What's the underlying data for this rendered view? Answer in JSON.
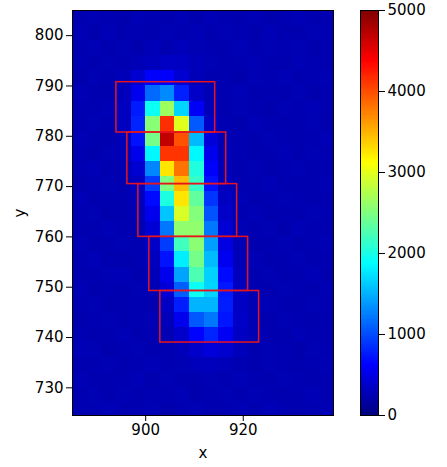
{
  "chart_data": {
    "type": "heatmap",
    "x_label": "x",
    "y_label": "y",
    "xlim": [
      885,
      938.5
    ],
    "ylim": [
      724.5,
      805
    ],
    "xticks": [
      900,
      920
    ],
    "yticks": [
      730,
      740,
      750,
      760,
      770,
      780,
      790,
      800
    ],
    "cells": {
      "x_edges": [
        885,
        888,
        891,
        894,
        897,
        900,
        903,
        906,
        909,
        912,
        915,
        918,
        921,
        924,
        927,
        930,
        933,
        936,
        939
      ],
      "y_edges": [
        805,
        802,
        799,
        796,
        793,
        790,
        787,
        784,
        781,
        778,
        775,
        772,
        769,
        766,
        763,
        760,
        757,
        754,
        751,
        748,
        745,
        742,
        739,
        736,
        733,
        730,
        727,
        724
      ],
      "values": [
        [
          240,
          265,
          250,
          230,
          270,
          255,
          245,
          260,
          235,
          275,
          250,
          240,
          265,
          230,
          255,
          270,
          245,
          250
        ],
        [
          260,
          235,
          275,
          245,
          250,
          230,
          265,
          255,
          270,
          240,
          260,
          250,
          235,
          275,
          245,
          230,
          260,
          255
        ],
        [
          245,
          270,
          240,
          260,
          235,
          280,
          255,
          290,
          265,
          250,
          245,
          270,
          240,
          260,
          250,
          265,
          235,
          245
        ],
        [
          255,
          240,
          265,
          250,
          275,
          300,
          340,
          330,
          290,
          260,
          240,
          255,
          270,
          245,
          235,
          260,
          250,
          240
        ],
        [
          235,
          260,
          250,
          276,
          398,
          610,
          610,
          398,
          276,
          255,
          245,
          230,
          260,
          250,
          270,
          240,
          255,
          265
        ],
        [
          265,
          245,
          240,
          294,
          558,
          1141,
          1306,
          778,
          360,
          259,
          250,
          270,
          240,
          255,
          245,
          260,
          235,
          250
        ],
        [
          250,
          255,
          270,
          310,
          754,
          1930,
          2650,
          1666,
          586,
          286,
          240,
          260,
          250,
          235,
          265,
          250,
          270,
          245
        ],
        [
          240,
          265,
          255,
          309,
          796,
          2551,
          4150,
          2980,
          1069,
          348,
          255,
          245,
          270,
          250,
          240,
          255,
          260,
          235
        ],
        [
          260,
          250,
          240,
          287,
          710,
          2458,
          4666,
          3976,
          1538,
          434,
          262,
          250,
          245,
          265,
          255,
          240,
          250,
          270
        ],
        [
          245,
          235,
          260,
          272,
          530,
          1841,
          4120,
          4120,
          1841,
          530,
          272,
          255,
          240,
          250,
          270,
          245,
          260,
          250
        ],
        [
          255,
          270,
          245,
          250,
          398,
          1286,
          3247,
          3802,
          2026,
          620,
          280,
          240,
          265,
          235,
          250,
          260,
          245,
          255
        ],
        [
          235,
          250,
          265,
          240,
          330,
          922,
          2490,
          3450,
          2138,
          698,
          298,
          250,
          255,
          270,
          245,
          235,
          250,
          265
        ],
        [
          270,
          245,
          250,
          255,
          295,
          670,
          2020,
          3250,
          2350,
          880,
          325,
          260,
          240,
          250,
          265,
          255,
          240,
          245
        ],
        [
          250,
          260,
          235,
          245,
          272,
          530,
          1594,
          2938,
          2518,
          1034,
          362,
          255,
          270,
          245,
          250,
          240,
          265,
          255
        ],
        [
          240,
          255,
          270,
          250,
          245,
          419,
          1212,
          2590,
          2590,
          1212,
          419,
          263,
          250,
          260,
          235,
          270,
          250,
          240
        ],
        [
          265,
          240,
          250,
          260,
          255,
          346,
          922,
          2194,
          2554,
          1402,
          490,
          269,
          245,
          250,
          265,
          245,
          255,
          260
        ],
        [
          250,
          270,
          245,
          235,
          250,
          305,
          712,
          1790,
          2450,
          1548,
          558,
          283,
          260,
          240,
          250,
          265,
          240,
          250
        ],
        [
          245,
          250,
          260,
          270,
          240,
          280,
          530,
          1430,
          2250,
          1650,
          670,
          300,
          255,
          265,
          245,
          250,
          270,
          235
        ],
        [
          260,
          235,
          250,
          245,
          265,
          264,
          425,
          1090,
          1930,
          1668,
          740,
          320,
          250,
          240,
          260,
          255,
          245,
          265
        ],
        [
          250,
          265,
          240,
          255,
          250,
          245,
          341,
          768,
          1510,
          1510,
          768,
          341,
          257,
          270,
          250,
          240,
          260,
          250
        ],
        [
          235,
          250,
          265,
          240,
          255,
          260,
          290,
          530,
          1060,
          1210,
          730,
          350,
          258,
          245,
          265,
          250,
          235,
          255
        ],
        [
          255,
          245,
          250,
          270,
          240,
          250,
          264,
          366,
          635,
          800,
          575,
          327,
          260,
          250,
          240,
          270,
          255,
          245
        ],
        [
          270,
          260,
          235,
          250,
          265,
          245,
          255,
          278,
          368,
          450,
          390,
          292,
          245,
          260,
          250,
          235,
          265,
          250
        ],
        [
          245,
          250,
          265,
          240,
          255,
          270,
          250,
          260,
          290,
          300,
          280,
          255,
          240,
          265,
          250,
          245,
          255,
          260
        ],
        [
          260,
          240,
          250,
          255,
          270,
          235,
          265,
          250,
          245,
          260,
          255,
          270,
          250,
          240,
          265,
          255,
          245,
          250
        ],
        [
          250,
          265,
          245,
          260,
          240,
          255,
          250,
          270,
          235,
          250,
          265,
          245,
          260,
          255,
          240,
          250,
          270,
          245
        ],
        [
          240,
          255,
          270,
          245,
          250,
          260,
          235,
          255,
          265,
          240,
          250,
          260,
          245,
          270,
          255,
          240,
          250,
          265
        ]
      ]
    },
    "colorbar": {
      "range": [
        0,
        5000
      ],
      "ticks": [
        0,
        1000,
        2000,
        3000,
        4000,
        5000
      ]
    },
    "boxes": {
      "color": "#e8141c",
      "values": [
        {
          "x1": 894,
          "x2": 914.25,
          "y1": 780.75,
          "y2": 790.75
        },
        {
          "x1": 896.25,
          "x2": 916.5,
          "y1": 770.5,
          "y2": 780.75
        },
        {
          "x1": 898.5,
          "x2": 918.75,
          "y1": 760,
          "y2": 770.5
        },
        {
          "x1": 900.75,
          "x2": 921,
          "y1": 749.25,
          "y2": 760
        },
        {
          "x1": 903,
          "x2": 923.25,
          "y1": 739,
          "y2": 749.25
        }
      ]
    }
  }
}
